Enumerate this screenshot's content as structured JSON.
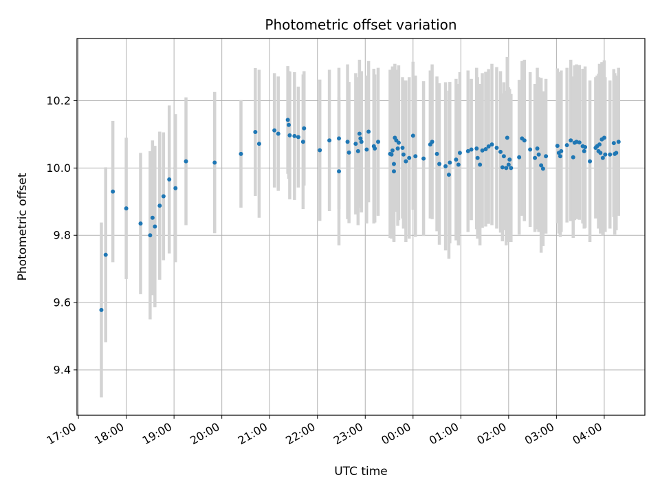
{
  "chart_data": {
    "type": "scatter",
    "title": "Photometric offset variation",
    "xlabel": "UTC time",
    "ylabel": "Photometric offset",
    "x_unit": "hours",
    "x_tick_labels": [
      "17:00",
      "18:00",
      "19:00",
      "20:00",
      "21:00",
      "22:00",
      "23:00",
      "00:00",
      "01:00",
      "02:00",
      "03:00",
      "04:00"
    ],
    "xlim": [
      16.97,
      28.85
    ],
    "ylim": [
      9.265,
      10.385
    ],
    "y_ticks": [
      9.4,
      9.6,
      9.8,
      10.0,
      10.2
    ],
    "grid": true,
    "point_color": "#1f77b4",
    "errorbar_color": "#d3d3d3",
    "series": [
      {
        "values": [
          [
            17.48,
            9.578,
            0.26
          ],
          [
            17.57,
            9.742,
            0.26
          ],
          [
            17.72,
            9.93,
            0.21
          ],
          [
            18.0,
            9.88,
            0.21
          ],
          [
            18.3,
            9.835,
            0.21
          ],
          [
            18.5,
            9.8,
            0.25
          ],
          [
            18.55,
            9.852,
            0.23
          ],
          [
            18.6,
            9.826,
            0.24
          ],
          [
            18.7,
            9.888,
            0.22
          ],
          [
            18.78,
            9.916,
            0.19
          ],
          [
            18.9,
            9.966,
            0.22
          ],
          [
            19.03,
            9.94,
            0.22
          ],
          [
            19.25,
            10.02,
            0.19
          ],
          [
            19.85,
            10.016,
            0.21
          ],
          [
            20.4,
            10.042,
            0.16
          ],
          [
            20.7,
            10.107,
            0.19
          ],
          [
            20.78,
            10.072,
            0.22
          ],
          [
            21.1,
            10.112,
            0.17
          ],
          [
            21.18,
            10.102,
            0.17
          ],
          [
            21.38,
            10.143,
            0.16
          ],
          [
            21.4,
            10.128,
            0.16
          ],
          [
            21.42,
            10.097,
            0.19
          ],
          [
            21.52,
            10.095,
            0.19
          ],
          [
            21.6,
            10.092,
            0.15
          ],
          [
            21.7,
            10.078,
            0.2
          ],
          [
            21.72,
            10.118,
            0.17
          ],
          [
            22.05,
            10.053,
            0.21
          ],
          [
            22.25,
            10.082,
            0.21
          ],
          [
            22.45,
            9.99,
            0.22
          ],
          [
            22.45,
            10.088,
            0.21
          ],
          [
            22.63,
            10.078,
            0.23
          ],
          [
            22.66,
            10.046,
            0.21
          ],
          [
            22.8,
            10.072,
            0.21
          ],
          [
            22.85,
            10.05,
            0.22
          ],
          [
            22.88,
            10.102,
            0.22
          ],
          [
            22.9,
            10.088,
            0.2
          ],
          [
            22.92,
            10.078,
            0.21
          ],
          [
            23.03,
            10.055,
            0.22
          ],
          [
            23.07,
            10.108,
            0.21
          ],
          [
            23.18,
            10.065,
            0.23
          ],
          [
            23.2,
            10.058,
            0.22
          ],
          [
            23.27,
            10.078,
            0.22
          ],
          [
            23.52,
            10.042,
            0.25
          ],
          [
            23.55,
            10.04,
            0.25
          ],
          [
            23.57,
            10.052,
            0.25
          ],
          [
            23.6,
            10.012,
            0.23
          ],
          [
            23.6,
            9.99,
            0.21
          ],
          [
            23.62,
            10.09,
            0.22
          ],
          [
            23.65,
            10.082,
            0.21
          ],
          [
            23.68,
            10.058,
            0.23
          ],
          [
            23.7,
            10.075,
            0.23
          ],
          [
            23.78,
            10.06,
            0.21
          ],
          [
            23.8,
            10.04,
            0.22
          ],
          [
            23.85,
            10.02,
            0.24
          ],
          [
            23.92,
            10.03,
            0.24
          ],
          [
            24.0,
            10.096,
            0.22
          ],
          [
            24.05,
            10.035,
            0.24
          ],
          [
            24.22,
            10.028,
            0.23
          ],
          [
            24.36,
            10.07,
            0.22
          ],
          [
            24.4,
            10.078,
            0.23
          ],
          [
            24.5,
            10.042,
            0.23
          ],
          [
            24.55,
            10.012,
            0.24
          ],
          [
            24.68,
            10.005,
            0.25
          ],
          [
            24.75,
            9.98,
            0.25
          ],
          [
            24.77,
            10.016,
            0.24
          ],
          [
            24.9,
            10.025,
            0.24
          ],
          [
            24.95,
            10.01,
            0.24
          ],
          [
            24.98,
            10.045,
            0.24
          ],
          [
            25.15,
            10.05,
            0.24
          ],
          [
            25.22,
            10.055,
            0.21
          ],
          [
            25.33,
            10.058,
            0.24
          ],
          [
            25.35,
            10.03,
            0.24
          ],
          [
            25.4,
            10.01,
            0.24
          ],
          [
            25.45,
            10.052,
            0.23
          ],
          [
            25.52,
            10.056,
            0.23
          ],
          [
            25.58,
            10.064,
            0.23
          ],
          [
            25.65,
            10.07,
            0.24
          ],
          [
            25.75,
            10.06,
            0.24
          ],
          [
            25.83,
            10.048,
            0.24
          ],
          [
            25.87,
            10.002,
            0.22
          ],
          [
            25.9,
            10.035,
            0.22
          ],
          [
            25.95,
            10.0,
            0.23
          ],
          [
            25.97,
            10.09,
            0.24
          ],
          [
            26.0,
            10.01,
            0.23
          ],
          [
            26.02,
            10.025,
            0.21
          ],
          [
            26.05,
            10.0,
            0.22
          ],
          [
            26.22,
            10.032,
            0.23
          ],
          [
            26.28,
            10.088,
            0.23
          ],
          [
            26.33,
            10.082,
            0.24
          ],
          [
            26.45,
            10.055,
            0.23
          ],
          [
            26.55,
            10.03,
            0.22
          ],
          [
            26.6,
            10.058,
            0.24
          ],
          [
            26.63,
            10.04,
            0.23
          ],
          [
            26.68,
            10.008,
            0.26
          ],
          [
            26.72,
            9.998,
            0.23
          ],
          [
            26.78,
            10.035,
            0.23
          ],
          [
            27.02,
            10.066,
            0.23
          ],
          [
            27.05,
            10.045,
            0.24
          ],
          [
            27.08,
            10.035,
            0.24
          ],
          [
            27.1,
            10.05,
            0.24
          ],
          [
            27.22,
            10.068,
            0.23
          ],
          [
            27.3,
            10.082,
            0.24
          ],
          [
            27.35,
            10.032,
            0.24
          ],
          [
            27.38,
            10.075,
            0.23
          ],
          [
            27.42,
            10.078,
            0.23
          ],
          [
            27.48,
            10.076,
            0.23
          ],
          [
            27.55,
            10.065,
            0.23
          ],
          [
            27.58,
            10.05,
            0.23
          ],
          [
            27.6,
            10.062,
            0.24
          ],
          [
            27.7,
            10.02,
            0.24
          ],
          [
            27.82,
            10.06,
            0.21
          ],
          [
            27.85,
            10.065,
            0.21
          ],
          [
            27.88,
            10.05,
            0.23
          ],
          [
            27.9,
            10.07,
            0.24
          ],
          [
            27.92,
            10.045,
            0.24
          ],
          [
            27.95,
            10.085,
            0.23
          ],
          [
            27.97,
            10.03,
            0.23
          ],
          [
            28.0,
            10.09,
            0.23
          ],
          [
            28.02,
            10.04,
            0.23
          ],
          [
            28.12,
            10.04,
            0.22
          ],
          [
            28.2,
            10.074,
            0.22
          ],
          [
            28.22,
            10.042,
            0.24
          ],
          [
            28.25,
            10.045,
            0.23
          ],
          [
            28.3,
            10.078,
            0.22
          ]
        ]
      }
    ]
  }
}
